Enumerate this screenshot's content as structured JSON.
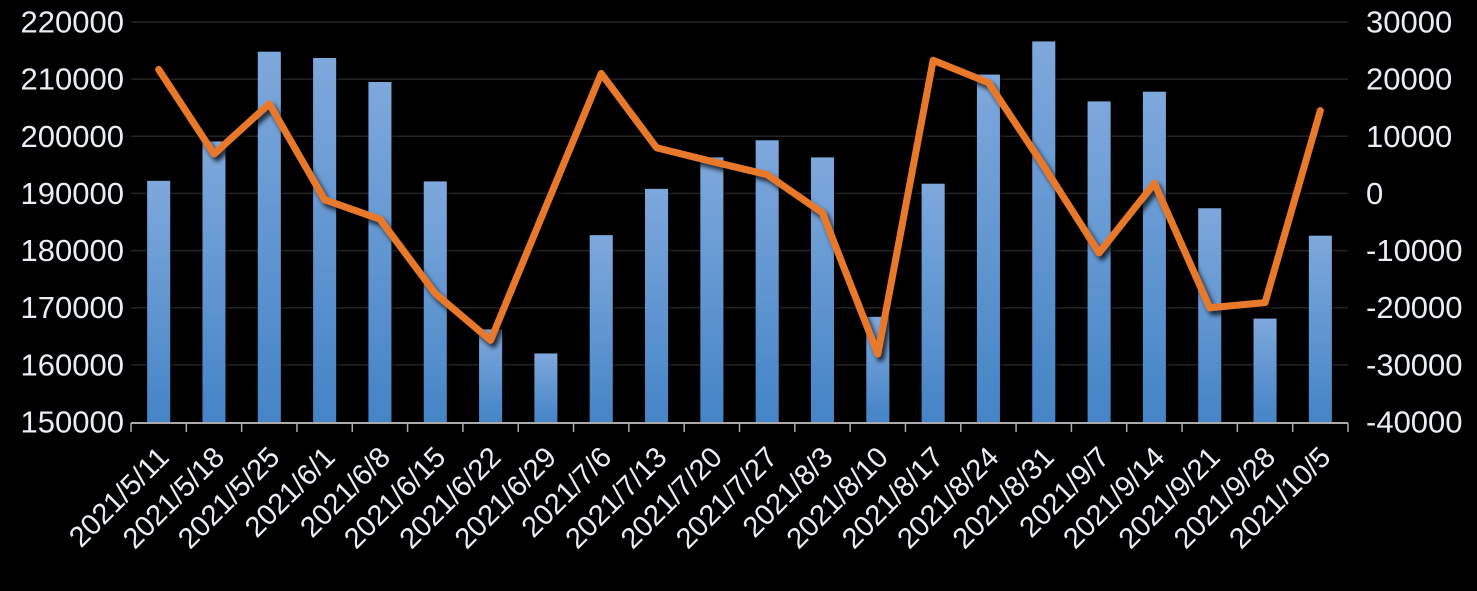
{
  "chart_data": {
    "type": "combo",
    "title": "",
    "xlabel": "",
    "ylabel": "",
    "legend": "none",
    "grid": true,
    "background": "#000000",
    "categories": [
      "2021/5/11",
      "2021/5/18",
      "2021/5/25",
      "2021/6/1",
      "2021/6/8",
      "2021/6/15",
      "2021/6/22",
      "2021/6/29",
      "2021/7/6",
      "2021/7/13",
      "2021/7/20",
      "2021/7/27",
      "2021/8/3",
      "2021/8/10",
      "2021/8/17",
      "2021/8/24",
      "2021/8/31",
      "2021/9/7",
      "2021/9/14",
      "2021/9/21",
      "2021/9/28",
      "2021/10/5"
    ],
    "series": [
      {
        "name": "",
        "type": "bar",
        "axis": "left",
        "values": [
          192200,
          199100,
          214800,
          213700,
          209500,
          192100,
          166200,
          162000,
          182700,
          190800,
          196300,
          199300,
          196300,
          168400,
          191700,
          210800,
          216600,
          206100,
          207800,
          187400,
          168100,
          182600
        ]
      },
      {
        "name": "",
        "type": "line",
        "axis": "right",
        "values": [
          21700,
          6900,
          15700,
          -1100,
          -4500,
          -17500,
          -25700,
          -2300,
          21000,
          8000,
          5600,
          3300,
          -3400,
          -28100,
          23300,
          19400,
          4800,
          -10400,
          1800,
          -20000,
          -19100,
          14500
        ]
      }
    ],
    "left_axis": {
      "min": 150000,
      "max": 220000,
      "step": 10000,
      "tick_labels": [
        "220000",
        "210000",
        "200000",
        "190000",
        "180000",
        "170000",
        "160000",
        "150000"
      ]
    },
    "right_axis": {
      "min": -40000,
      "max": 30000,
      "step": 10000,
      "tick_labels": [
        "30000",
        "20000",
        "10000",
        "0",
        "-10000",
        "-20000",
        "-30000",
        "-40000"
      ]
    }
  },
  "colors": {
    "background": "#000000",
    "bar_top": "#7EA8DC",
    "bar_bottom": "#4484C6",
    "line": "#E8782C",
    "label": "#E9EDF4",
    "gridline": "#242424",
    "axis": "#ABABAB"
  }
}
